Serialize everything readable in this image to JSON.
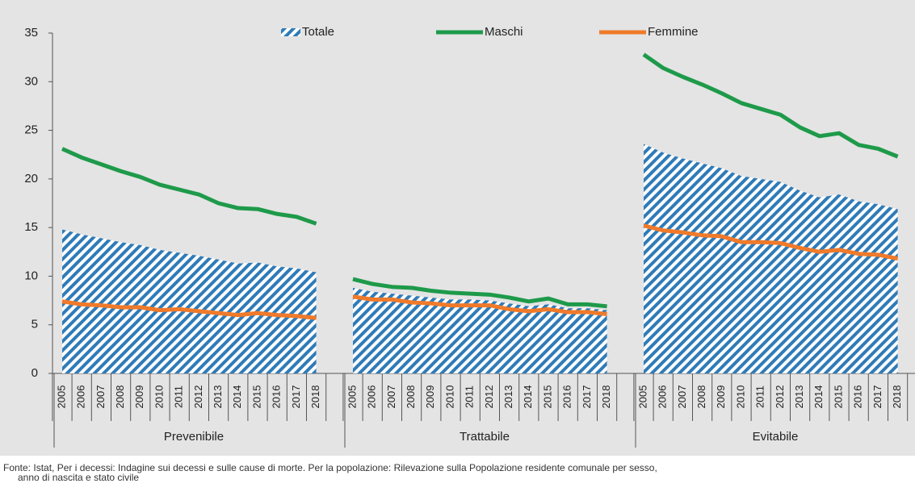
{
  "chart_data": {
    "type": "grouped_area_line",
    "ylim": [
      0,
      35
    ],
    "yticks": [
      0,
      5,
      10,
      15,
      20,
      25,
      30,
      35
    ],
    "groups": [
      {
        "name": "Prevenibile",
        "categories": [
          "2005",
          "2006",
          "2007",
          "2008",
          "2009",
          "2010",
          "2011",
          "2012",
          "2013",
          "2014",
          "2015",
          "2016",
          "2017",
          "2018"
        ]
      },
      {
        "name": "Trattabile",
        "categories": [
          "2005",
          "2006",
          "2007",
          "2008",
          "2009",
          "2010",
          "2011",
          "2012",
          "2013",
          "2014",
          "2015",
          "2016",
          "2017",
          "2018"
        ]
      },
      {
        "name": "Evitabile",
        "categories": [
          "2005",
          "2006",
          "2007",
          "2008",
          "2009",
          "2010",
          "2011",
          "2012",
          "2013",
          "2014",
          "2015",
          "2016",
          "2017",
          "2018"
        ]
      }
    ],
    "series": [
      {
        "name": "Totale",
        "style": "hatched-area",
        "color": "#2f7bb8",
        "values": [
          [
            14.8,
            14.3,
            13.9,
            13.5,
            13.2,
            12.7,
            12.4,
            12.1,
            11.7,
            11.3,
            11.4,
            11.0,
            10.8,
            10.4
          ],
          [
            8.8,
            8.4,
            8.2,
            8.0,
            7.8,
            7.6,
            7.6,
            7.5,
            7.2,
            6.9,
            7.1,
            6.7,
            6.7,
            6.5
          ],
          [
            23.6,
            22.7,
            22.1,
            21.6,
            21.1,
            20.3,
            20.0,
            19.7,
            18.8,
            18.1,
            18.4,
            17.7,
            17.4,
            16.9
          ]
        ]
      },
      {
        "name": "Maschi",
        "style": "line",
        "color": "#1e9a4a",
        "values": [
          [
            23.1,
            22.2,
            21.5,
            20.8,
            20.2,
            19.4,
            18.9,
            18.4,
            17.5,
            17.0,
            16.9,
            16.4,
            16.1,
            15.4
          ],
          [
            9.7,
            9.2,
            8.9,
            8.8,
            8.5,
            8.3,
            8.2,
            8.1,
            7.8,
            7.4,
            7.7,
            7.1,
            7.1,
            6.9
          ],
          [
            32.8,
            31.4,
            30.5,
            29.7,
            28.8,
            27.8,
            27.2,
            26.6,
            25.3,
            24.4,
            24.7,
            23.5,
            23.1,
            22.3
          ]
        ]
      },
      {
        "name": "Femmine",
        "style": "line",
        "color": "#f07a2a",
        "values": [
          [
            7.4,
            7.1,
            7.0,
            6.8,
            6.8,
            6.5,
            6.6,
            6.4,
            6.2,
            6.0,
            6.2,
            6.0,
            5.9,
            5.7
          ],
          [
            7.9,
            7.6,
            7.6,
            7.3,
            7.2,
            7.0,
            7.0,
            7.0,
            6.6,
            6.4,
            6.6,
            6.3,
            6.3,
            6.1
          ],
          [
            15.2,
            14.7,
            14.5,
            14.2,
            14.1,
            13.5,
            13.5,
            13.4,
            12.9,
            12.5,
            12.7,
            12.3,
            12.2,
            11.8
          ]
        ]
      }
    ],
    "note": [
      "Fonte: Istat, Per i decessi: Indagine sui decessi e sulle cause di morte. Per la popolazione: Rilevazione sulla Popolazione residente comunale per sesso,",
      "anno di nascita e stato civile"
    ]
  }
}
